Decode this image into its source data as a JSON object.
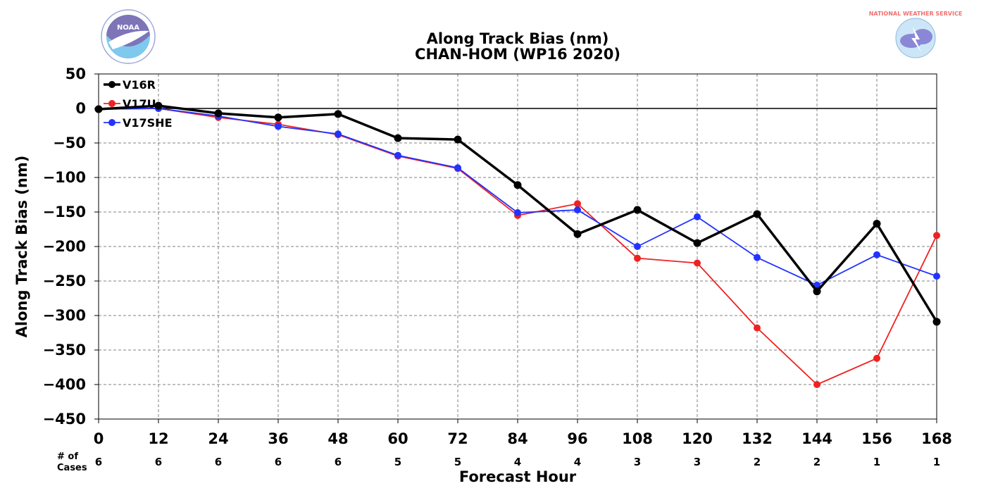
{
  "chart_data": {
    "type": "line",
    "title": "Along Track Bias (nm)",
    "subtitle": "CHAN-HOM (WP16 2020)",
    "xlabel": "Forecast Hour",
    "ylabel": "Along Track Bias (nm)",
    "x": [
      0,
      12,
      24,
      36,
      48,
      60,
      72,
      84,
      96,
      108,
      120,
      132,
      144,
      156,
      168
    ],
    "xlim": [
      0,
      168
    ],
    "ylim": [
      -450,
      50
    ],
    "yticks": [
      50,
      0,
      -50,
      -100,
      -150,
      -200,
      -250,
      -300,
      -350,
      -400,
      -450
    ],
    "ytick_labels": [
      "50",
      "0",
      "−50",
      "−100",
      "−150",
      "−200",
      "−250",
      "−300",
      "−350",
      "−400",
      "−450"
    ],
    "grid": true,
    "legend_position": "top-left",
    "cases_label_line1": "# of",
    "cases_label_line2": "Cases",
    "cases": [
      6,
      6,
      6,
      6,
      6,
      5,
      5,
      4,
      4,
      3,
      3,
      2,
      2,
      1,
      1
    ],
    "series": [
      {
        "name": "V16R",
        "color": "#000000",
        "width": 3.5,
        "values": [
          -1,
          4,
          -7,
          -13,
          -8,
          -43,
          -45,
          -111,
          -182,
          -147,
          -195,
          -153,
          -265,
          -167,
          -309
        ]
      },
      {
        "name": "V17U",
        "color": "#ee2222",
        "width": 1.8,
        "values": [
          -1,
          0,
          -13,
          -23,
          -38,
          -69,
          -87,
          -155,
          -138,
          -217,
          -224,
          -318,
          -400,
          -362,
          -184
        ]
      },
      {
        "name": "V17SHE",
        "color": "#2233ff",
        "width": 1.8,
        "values": [
          -1,
          0,
          -11,
          -26,
          -37,
          -68,
          -86,
          -151,
          -147,
          -200,
          -157,
          -216,
          -256,
          -212,
          -243
        ]
      }
    ]
  },
  "logos": {
    "noaa": {
      "text": "NOAA",
      "ring_text": "NATIONAL OCEANIC AND ATMOSPHERIC ADMINISTRATION · U.S. DEPARTMENT OF COMMERCE"
    },
    "nws": {
      "ring_text": "NATIONAL WEATHER SERVICE"
    }
  }
}
